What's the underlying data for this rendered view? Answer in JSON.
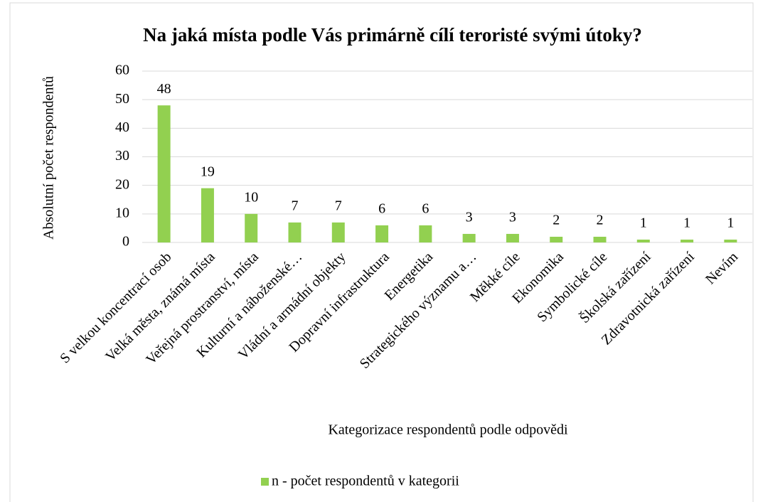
{
  "chart_data": {
    "type": "bar",
    "title": "Na jaká místa podle Vás primárně cílí teroristé svými útoky?",
    "x_label": "Kategorizace respondentů podle odpovědi",
    "y_label": "Absolutní počet respondentů",
    "categories": [
      "S velkou koncentrací osob",
      "Velká města, známá místa",
      "Veřejná prostranství, místa",
      "Kulturní a náboženské…",
      "Vládní a armádní objekty",
      "Dopravní infrastruktura",
      "Energetika",
      "Strategického významu a…",
      "Měkké cíle",
      "Ekonomika",
      "Symbolické cíle",
      "Školská zařízení",
      "Zdravotnická zařízení",
      "Nevím"
    ],
    "series": [
      {
        "name": "n - počet respondentů v kategorii",
        "color": "#92d050",
        "values": [
          48,
          19,
          10,
          7,
          7,
          6,
          6,
          3,
          3,
          2,
          2,
          1,
          1,
          1
        ]
      }
    ],
    "ylim": [
      0,
      60
    ],
    "yticks": [
      0,
      10,
      20,
      30,
      40,
      50,
      60
    ],
    "grid": true,
    "legend": "bottom"
  }
}
